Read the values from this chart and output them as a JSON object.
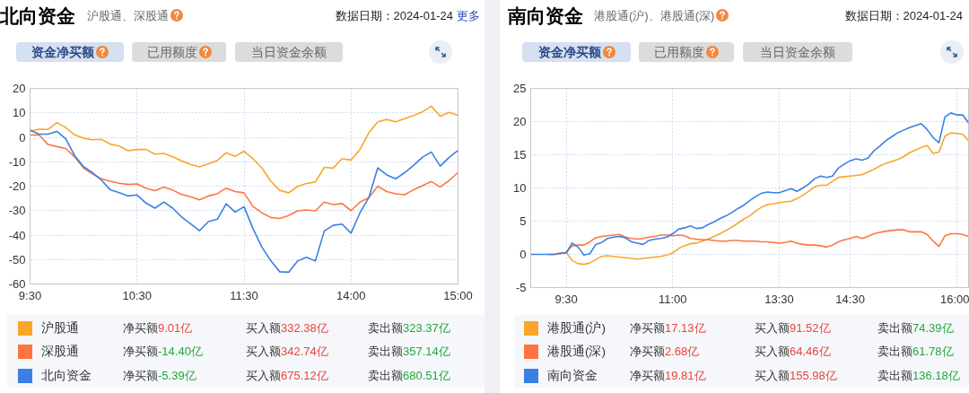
{
  "chart_data": [
    {
      "type": "line",
      "title": "北向资金",
      "subtitle": "沪股通、深股通",
      "categories": [
        "9:30",
        null,
        null,
        null,
        null,
        null,
        null,
        null,
        null,
        null,
        null,
        null,
        "10:30",
        null,
        null,
        null,
        null,
        null,
        null,
        null,
        null,
        null,
        null,
        null,
        "11:30",
        null,
        null,
        null,
        null,
        null,
        null,
        null,
        null,
        null,
        null,
        null,
        "14:00",
        null,
        null,
        null,
        null,
        null,
        null,
        null,
        null,
        null,
        null,
        null,
        "15:00"
      ],
      "ylim": [
        -60,
        20
      ],
      "yticks": [
        -60,
        -50,
        -40,
        -30,
        -20,
        -10,
        0,
        10,
        20
      ],
      "grid": true,
      "legend": "bottom",
      "series": [
        {
          "name": "沪股通",
          "color": "#f9a62b",
          "values": [
            2.5,
            3.3,
            3.2,
            6.0,
            4.0,
            1.0,
            -0.4,
            -1.0,
            -0.8,
            -2.8,
            -3.6,
            -5.5,
            -5.0,
            -5.0,
            -6.9,
            -6.6,
            -8.0,
            -9.6,
            -11.1,
            -12.1,
            -10.8,
            -9.5,
            -6.3,
            -7.8,
            -5.7,
            -8.8,
            -12.5,
            -18.0,
            -21.7,
            -22.7,
            -20.1,
            -18.9,
            -18.3,
            -12.3,
            -12.6,
            -8.8,
            -9.3,
            -5.0,
            1.9,
            6.3,
            7.3,
            6.3,
            7.6,
            8.9,
            10.4,
            12.7,
            8.6,
            10.2,
            9.0
          ]
        },
        {
          "name": "深股通",
          "color": "#ff7540",
          "values": [
            0.9,
            1.0,
            -2.9,
            -3.8,
            -4.6,
            -8.0,
            -12.6,
            -15.0,
            -17.0,
            -18.0,
            -18.8,
            -19.3,
            -19.1,
            -20.8,
            -21.8,
            -20.4,
            -21.6,
            -23.4,
            -24.3,
            -25.6,
            -24.0,
            -23.1,
            -20.8,
            -22.2,
            -22.7,
            -28.3,
            -30.9,
            -32.8,
            -33.2,
            -32.0,
            -30.1,
            -29.7,
            -30.1,
            -26.5,
            -27.5,
            -27.1,
            -30.0,
            -26.5,
            -24.7,
            -20.0,
            -22.2,
            -23.1,
            -23.5,
            -21.5,
            -19.8,
            -18.1,
            -20.3,
            -17.7,
            -14.4
          ]
        },
        {
          "name": "北向资金",
          "color": "#3a80e4",
          "values": [
            2.9,
            1.3,
            1.3,
            2.4,
            -0.6,
            -7.5,
            -12.0,
            -14.5,
            -17.5,
            -21.5,
            -22.7,
            -24.0,
            -23.6,
            -26.9,
            -29.0,
            -26.5,
            -29.0,
            -32.6,
            -35.4,
            -38.2,
            -34.5,
            -33.5,
            -27.2,
            -30.6,
            -28.4,
            -37.3,
            -44.9,
            -50.5,
            -55.0,
            -55.2,
            -50.6,
            -49.1,
            -50.6,
            -38.3,
            -36.0,
            -35.5,
            -39.2,
            -30.9,
            -24.6,
            -12.5,
            -15.4,
            -17.0,
            -14.5,
            -11.5,
            -8.2,
            -6.0,
            -11.8,
            -8.2,
            -5.4
          ]
        }
      ],
      "annotations": [
        "数据日期：2024-01-24",
        "资金净买额",
        "已用额度",
        "当日资金余额",
        "净买额",
        "9.01亿",
        "买入额",
        "332.38亿",
        "卖出额",
        "323.37亿",
        "净买额",
        "-14.40亿",
        "买入额",
        "342.74亿",
        "卖出额",
        "357.14亿",
        "净买额",
        "-5.39亿",
        "买入额",
        "675.12亿",
        "卖出额",
        "680.51亿",
        "更多"
      ]
    },
    {
      "type": "line",
      "title": "南向资金",
      "subtitle": "港股通(沪)、港股通(深)",
      "categories": [
        null,
        null,
        null,
        null,
        null,
        null,
        "9:30",
        null,
        null,
        null,
        null,
        null,
        null,
        null,
        null,
        null,
        null,
        null,
        null,
        null,
        null,
        null,
        null,
        null,
        "11:00",
        null,
        null,
        null,
        null,
        null,
        null,
        null,
        null,
        null,
        null,
        null,
        null,
        null,
        null,
        null,
        null,
        null,
        "13:30",
        null,
        null,
        null,
        null,
        null,
        null,
        null,
        null,
        null,
        null,
        null,
        "14:30",
        null,
        null,
        null,
        null,
        null,
        null,
        null,
        null,
        null,
        null,
        null,
        null,
        null,
        null,
        null,
        null,
        null,
        "16:00",
        null,
        null
      ],
      "ylim": [
        -5,
        25
      ],
      "yticks": [
        -5,
        0,
        5,
        10,
        15,
        20,
        25
      ],
      "grid": true,
      "legend": "bottom",
      "series": [
        {
          "name": "港股通(沪)",
          "color": "#f9a62b",
          "values": [
            null,
            null,
            null,
            0,
            0,
            0.1,
            0.3,
            -0.9,
            -1.4,
            -1.5,
            -1.3,
            -0.8,
            -0.3,
            -0.2,
            -0.3,
            -0.4,
            -0.5,
            -0.6,
            -0.7,
            -0.6,
            -0.5,
            -0.4,
            -0.3,
            -0.1,
            0.2,
            0.9,
            1.3,
            1.6,
            1.7,
            2.0,
            2.3,
            2.7,
            3.1,
            3.6,
            4.1,
            4.7,
            5.3,
            5.8,
            6.5,
            7.1,
            7.5,
            7.6,
            7.8,
            7.9,
            8.0,
            8.4,
            8.9,
            9.5,
            10.2,
            10.4,
            10.4,
            11.0,
            11.6,
            11.7,
            11.8,
            11.9,
            12.0,
            12.4,
            12.8,
            13.3,
            13.7,
            14.0,
            14.3,
            14.7,
            15.3,
            15.7,
            16.1,
            16.4,
            15.2,
            15.4,
            17.8,
            18.3,
            18.2,
            18.1,
            17.1
          ]
        },
        {
          "name": "港股通(深)",
          "color": "#ff7540",
          "values": [
            null,
            null,
            null,
            0,
            0,
            0.1,
            0.3,
            1.3,
            1.4,
            1.4,
            1.9,
            2.5,
            2.7,
            2.8,
            2.9,
            3.0,
            2.6,
            2.4,
            2.3,
            2.4,
            2.6,
            2.7,
            2.9,
            2.9,
            2.8,
            2.9,
            2.8,
            2.4,
            2.3,
            2.2,
            2.2,
            2.1,
            2.0,
            2.0,
            2.1,
            2.1,
            2.0,
            2.0,
            2.0,
            1.9,
            1.9,
            1.8,
            1.7,
            1.8,
            2.0,
            1.7,
            1.5,
            1.4,
            1.4,
            1.3,
            1.1,
            1.4,
            1.9,
            2.2,
            2.4,
            2.7,
            2.4,
            2.7,
            3.1,
            3.3,
            3.5,
            3.6,
            3.7,
            3.7,
            3.4,
            3.4,
            3.4,
            3.0,
            2.0,
            1.2,
            2.8,
            3.1,
            3.1,
            3.0,
            2.7
          ]
        },
        {
          "name": "南向资金",
          "color": "#3a80e4",
          "values": [
            0,
            0,
            0,
            0,
            0,
            0.2,
            0.2,
            1.7,
            1.1,
            -0.1,
            0.1,
            1.5,
            1.8,
            2.4,
            2.6,
            2.7,
            2.5,
            1.9,
            1.7,
            1.5,
            2.1,
            2.3,
            2.4,
            2.6,
            3.1,
            3.8,
            4.0,
            4.3,
            3.9,
            4.0,
            4.5,
            4.9,
            5.4,
            5.8,
            6.3,
            6.9,
            7.4,
            8.1,
            8.7,
            9.2,
            9.4,
            9.3,
            9.3,
            9.6,
            9.9,
            9.5,
            10.0,
            10.6,
            11.4,
            11.8,
            11.6,
            11.8,
            13.0,
            13.6,
            14.1,
            14.4,
            14.2,
            14.5,
            15.6,
            16.3,
            17.1,
            17.7,
            18.3,
            18.7,
            19.1,
            19.4,
            19.7,
            18.8,
            17.6,
            16.8,
            20.7,
            21.3,
            21.0,
            21.0,
            19.8
          ]
        }
      ],
      "annotations": [
        "数据日期：2024-01-24",
        "资金净买额",
        "已用额度",
        "当日资金余额",
        "净买额",
        "17.13亿",
        "买入额",
        "91.52亿",
        "卖出额",
        "74.39亿",
        "净买额",
        "2.68亿",
        "买入额",
        "64.46亿",
        "卖出额",
        "61.78亿",
        "净买额",
        "19.81亿",
        "买入额",
        "155.98亿",
        "卖出额",
        "136.18亿"
      ]
    }
  ]
}
